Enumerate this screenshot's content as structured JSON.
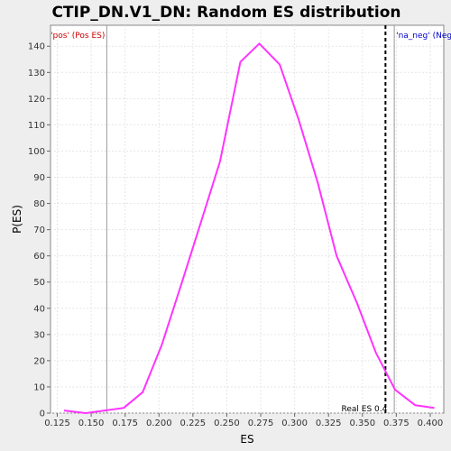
{
  "chart_data": {
    "type": "line",
    "title": "CTIP_DN.V1_DN: Random ES distribution",
    "xlabel": "ES",
    "ylabel": "P(ES)",
    "xlim": [
      0.12,
      0.41
    ],
    "ylim": [
      0,
      148
    ],
    "x_ticks": [
      0.125,
      0.15,
      0.175,
      0.2,
      0.225,
      0.25,
      0.275,
      0.3,
      0.325,
      0.35,
      0.375,
      0.4
    ],
    "x_tick_labels": [
      "0.125",
      "0.150",
      "0.175",
      "0.200",
      "0.225",
      "0.250",
      "0.275",
      "0.300",
      "0.325",
      "0.350",
      "0.375",
      "0.400"
    ],
    "y_ticks": [
      0,
      10,
      20,
      30,
      40,
      50,
      60,
      70,
      80,
      90,
      100,
      110,
      120,
      130,
      140
    ],
    "y_tick_labels": [
      "0",
      "10",
      "20",
      "30",
      "40",
      "50",
      "60",
      "70",
      "80",
      "90",
      "100",
      "110",
      "120",
      "130",
      "140"
    ],
    "grid": true,
    "series": [
      {
        "color": "#ff33ff",
        "x": [
          0.13,
          0.146,
          0.16,
          0.174,
          0.188,
          0.202,
          0.217,
          0.231,
          0.245,
          0.26,
          0.274,
          0.289,
          0.303,
          0.317,
          0.331,
          0.346,
          0.36,
          0.374,
          0.389,
          0.403
        ],
        "y": [
          1,
          0,
          1,
          2,
          8,
          26,
          50,
          73,
          96,
          134,
          141,
          133,
          112,
          88,
          60,
          42,
          23,
          9,
          3,
          2
        ]
      }
    ],
    "vlines": [
      {
        "x": 0.1615,
        "color": "#999999",
        "style": "solid",
        "label": "'pos' (Pos ES)",
        "label_color": "#cc0000",
        "label_side": "left"
      },
      {
        "x": 0.3735,
        "color": "#999999",
        "style": "solid",
        "label": "'na_neg' (Neg",
        "label_color": "#0000cc",
        "label_side": "right"
      },
      {
        "x": 0.367,
        "color": "#000000",
        "style": "dashed",
        "label": "Real ES 0.4",
        "label_color": "#000000",
        "label_side": "bottom-left"
      }
    ]
  }
}
